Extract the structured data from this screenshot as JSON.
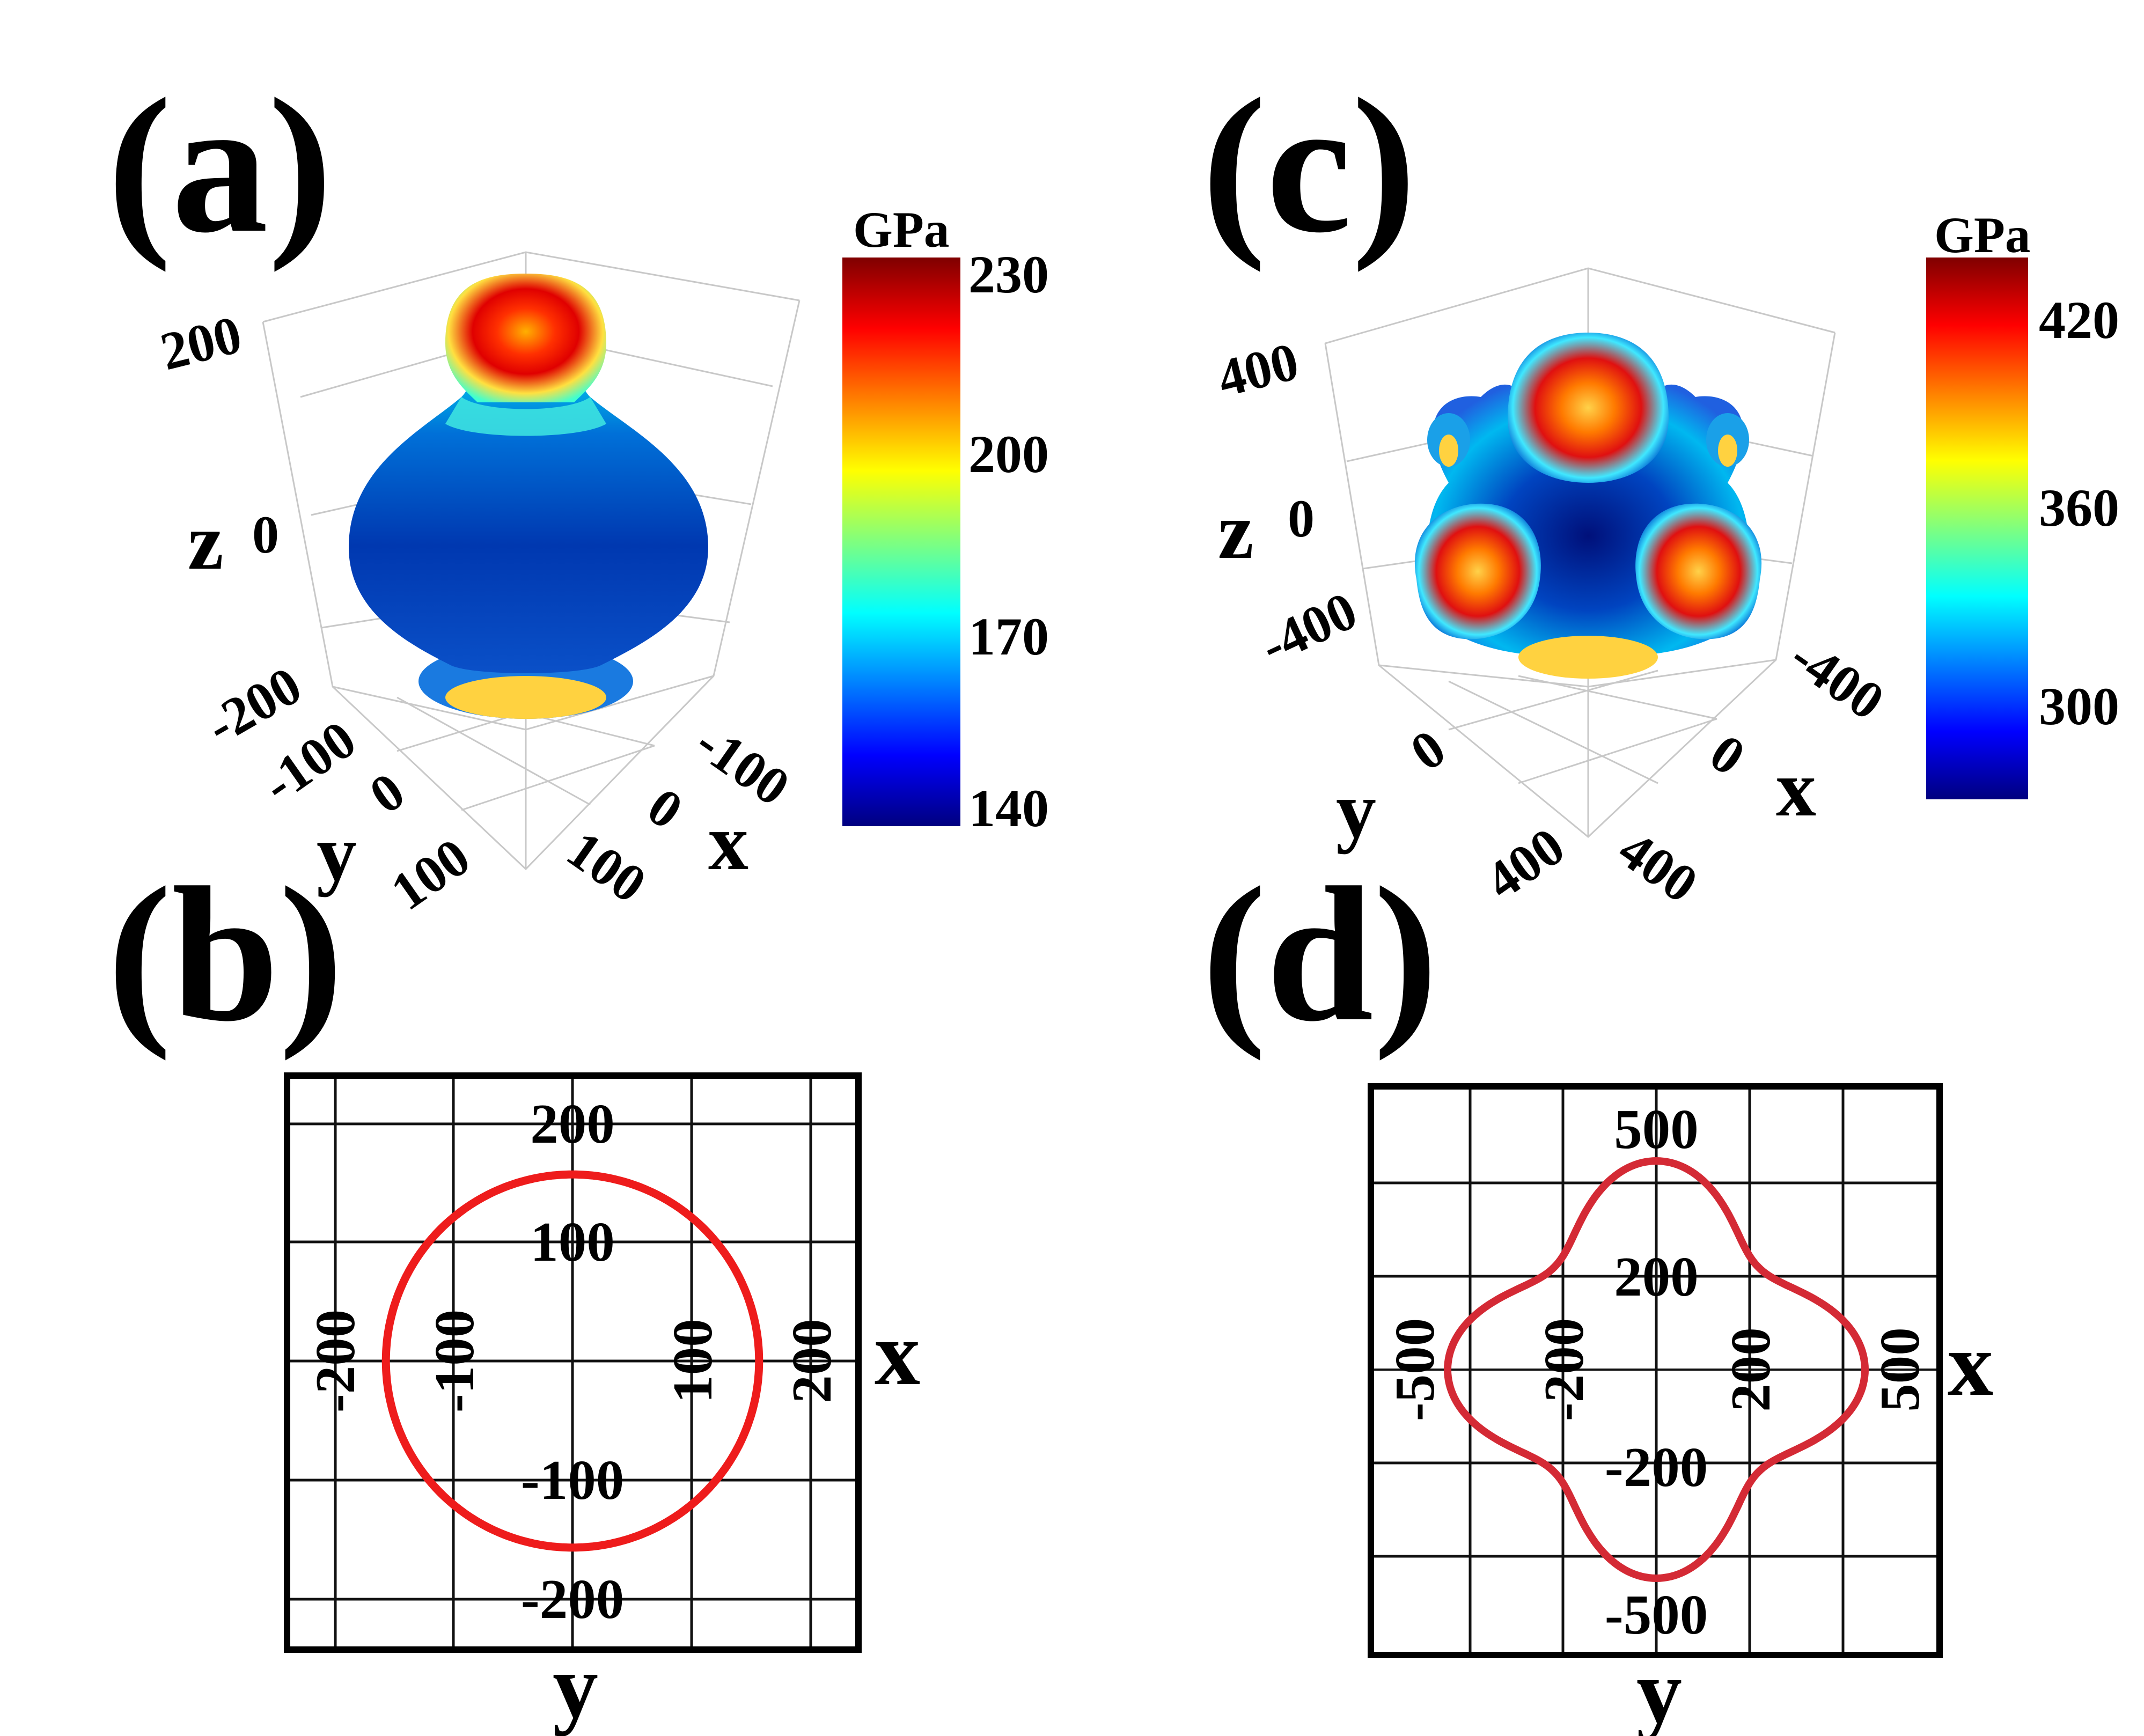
{
  "panels": [
    {
      "label": "(a)",
      "surface_scale_max": 230,
      "axes": {
        "z_label": "z",
        "y_label": "y",
        "x_label": "x",
        "z_ticks": [
          "200",
          "0",
          "-200"
        ],
        "y_ticks": [
          "-100",
          "0",
          "100"
        ],
        "x_ticks": [
          "-100",
          "0",
          "100"
        ]
      },
      "colorbar": {
        "unit": "GPa",
        "ticks": [
          "230",
          "200",
          "170",
          "140"
        ],
        "range": [
          140,
          230
        ]
      }
    },
    {
      "label": "(b)",
      "axes": {
        "x_label": "x",
        "y_label": "y",
        "x_ticks": [
          "-200",
          "-100",
          "100",
          "200"
        ],
        "y_ticks": [
          "200",
          "100",
          "-100",
          "-200"
        ]
      }
    },
    {
      "label": "(c)",
      "surface_scale_max": 440,
      "axes": {
        "z_label": "z",
        "y_label": "y",
        "x_label": "x",
        "z_ticks": [
          "400",
          "0",
          "-400"
        ],
        "y_ticks": [
          "0",
          "400"
        ],
        "x_ticks": [
          "-400",
          "0",
          "400"
        ]
      },
      "colorbar": {
        "unit": "GPa",
        "ticks": [
          "420",
          "360",
          "300"
        ],
        "range": [
          270,
          440
        ]
      }
    },
    {
      "label": "(d)",
      "axes": {
        "x_label": "x",
        "y_label": "y",
        "x_ticks": [
          "-500",
          "-200",
          "200",
          "500"
        ],
        "y_ticks": [
          "500",
          "200",
          "-200",
          "-500"
        ]
      }
    }
  ],
  "colors": {
    "curve": "#ee1c1c",
    "curve_d": "#d42a35",
    "frame": "#000000",
    "grid": "#111111",
    "colormap": "jet"
  },
  "chart_data": [
    {
      "type": "surface",
      "panel": "(a)",
      "description": "3D directional Young's modulus surface",
      "color_scale": [
        140,
        230
      ],
      "zlim": [
        -240,
        240
      ],
      "xlim": [
        -150,
        150
      ],
      "ylim": [
        -150,
        150
      ]
    },
    {
      "type": "polar",
      "panel": "(b)",
      "plane": "xy",
      "series": [
        {
          "radius_constant": 160
        }
      ],
      "xlim": [
        -245,
        245
      ],
      "ylim": [
        -245,
        245
      ]
    },
    {
      "type": "surface",
      "panel": "(c)",
      "description": "3D directional Young's modulus surface",
      "color_scale": [
        270,
        440
      ],
      "xlim": [
        -500,
        500
      ],
      "ylim": [
        -500,
        500
      ],
      "zlim": [
        -500,
        500
      ]
    },
    {
      "type": "polar",
      "panel": "(d)",
      "plane": "xy",
      "series": [
        {
          "r_axis_max": 433,
          "r_diagonal_min": 300
        }
      ],
      "xlim": [
        -590,
        590
      ],
      "ylim": [
        -590,
        590
      ]
    }
  ]
}
